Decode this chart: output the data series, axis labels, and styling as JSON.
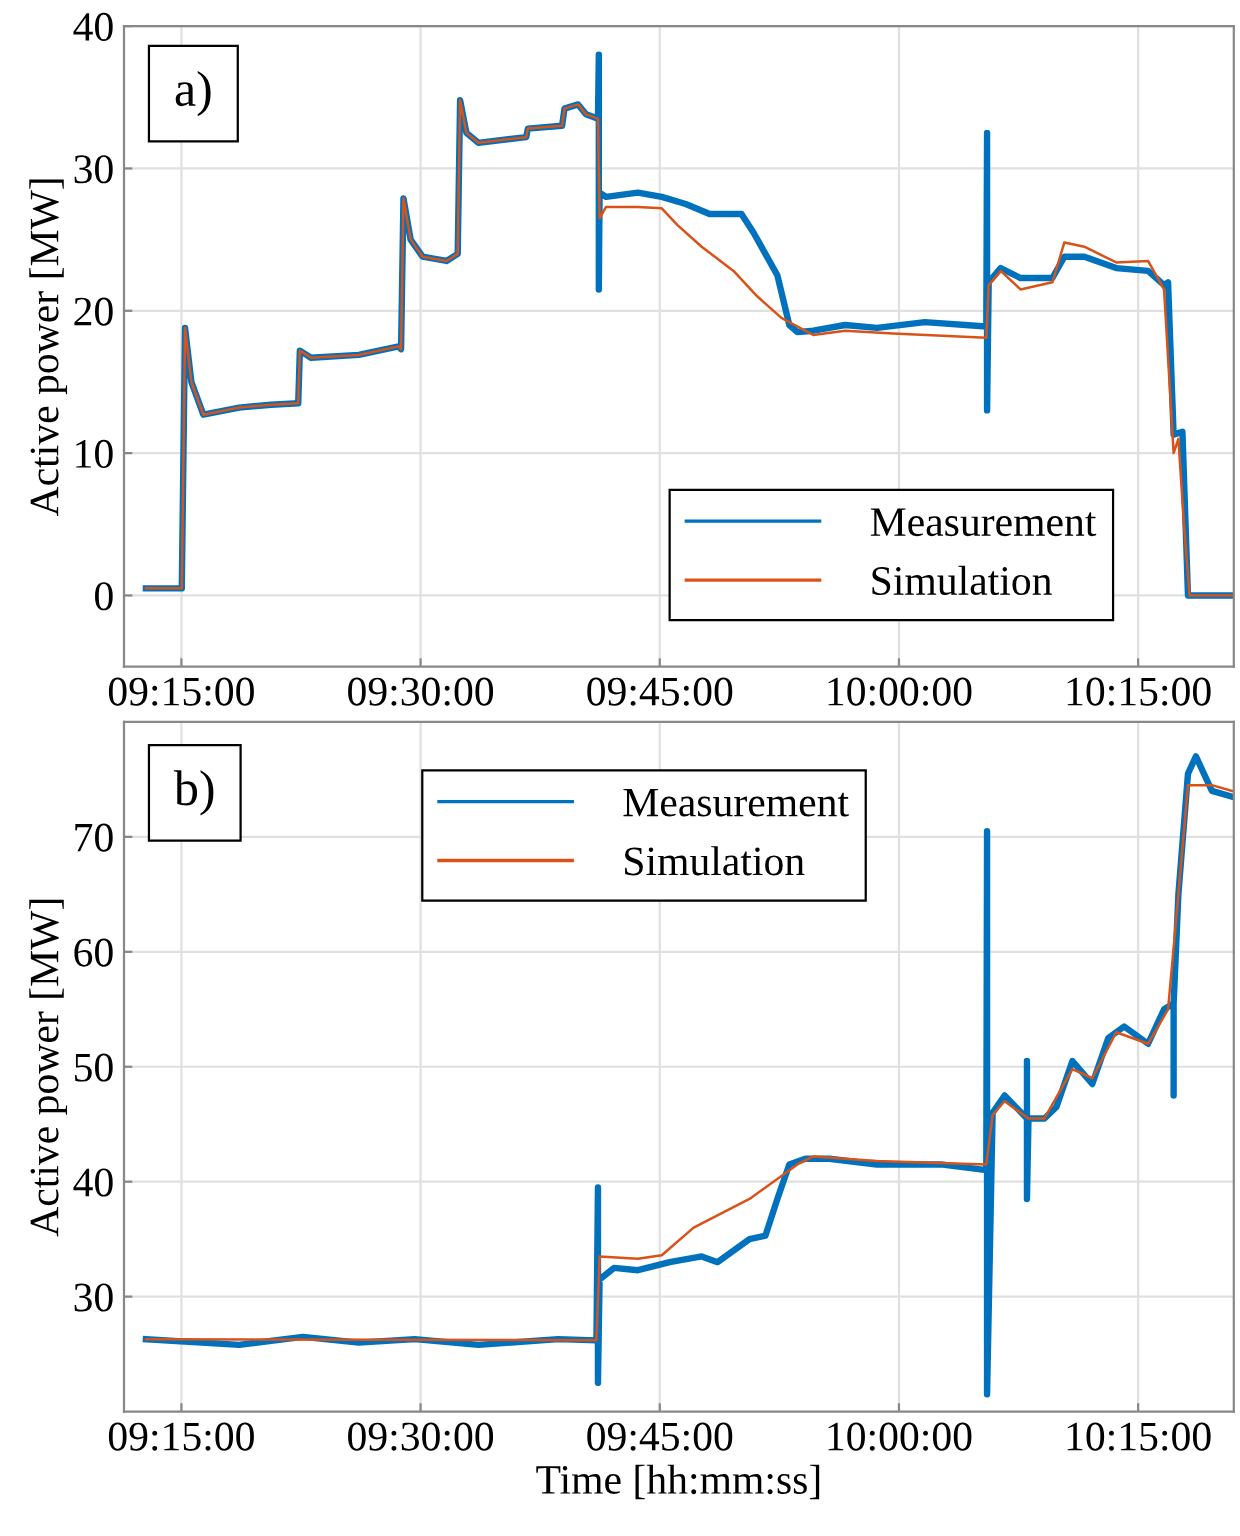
{
  "chart_data": [
    {
      "type": "line",
      "ylabel": "Active power [MW]",
      "annotations": [
        "a)"
      ],
      "legend": "bottom right",
      "grid": true,
      "line_style": "solid",
      "marker": "none",
      "xlim": [
        9.19,
        10.35
      ],
      "ylim": [
        -5,
        40
      ],
      "yticks": [
        0,
        10,
        20,
        30,
        40
      ],
      "xticks": [
        {
          "value": 9.25,
          "label": "09:15:00"
        },
        {
          "value": 9.5,
          "label": "09:30:00"
        },
        {
          "value": 9.75,
          "label": "09:45:00"
        },
        {
          "value": 10.0,
          "label": "10:00:00"
        },
        {
          "value": 10.25,
          "label": "10:15:00"
        }
      ],
      "series": [
        {
          "name": "Measurement",
          "color": "#0072bd",
          "x": [
            9.2129,
            9.2504,
            9.2538,
            9.2604,
            9.2729,
            9.3104,
            9.3438,
            9.3721,
            9.3738,
            9.3854,
            9.4354,
            9.4771,
            9.4796,
            9.4821,
            9.4896,
            9.5021,
            9.5271,
            9.5388,
            9.5413,
            9.5479,
            9.5604,
            9.6104,
            9.6121,
            9.6479,
            9.6504,
            9.6646,
            9.6729,
            9.6854,
            9.6863,
            9.6863,
            9.6871,
            9.6938,
            9.7271,
            9.7521,
            9.7771,
            9.8021,
            9.8354,
            9.8479,
            9.8604,
            9.8729,
            9.8854,
            9.8938,
            9.9104,
            9.9438,
            9.9771,
            10.0271,
            10.0913,
            10.0921,
            10.0921,
            10.0938,
            10.1063,
            10.1271,
            10.1604,
            10.1729,
            10.1938,
            10.2271,
            10.2604,
            10.2771,
            10.2813,
            10.2871,
            10.2963,
            10.3021,
            10.3063,
            10.3479
          ],
          "values": [
            0.5,
            0.5,
            18.8,
            15,
            12.7,
            13.2,
            13.4,
            13.5,
            17.2,
            16.7,
            16.9,
            17.5,
            17.3,
            27.9,
            25,
            23.8,
            23.5,
            24,
            34.8,
            32.5,
            31.8,
            32.2,
            32.8,
            33,
            34.2,
            34.5,
            33.8,
            33.5,
            38,
            21.5,
            28.3,
            28,
            28.3,
            28,
            27.5,
            26.8,
            26.8,
            25.5,
            24,
            22.5,
            19,
            18.5,
            18.6,
            19,
            18.8,
            19.2,
            18.9,
            32.5,
            13,
            22,
            23,
            22.3,
            22.3,
            23.8,
            23.8,
            23,
            22.8,
            21.8,
            22,
            11.3,
            11.5,
            0,
            0,
            0
          ]
        },
        {
          "name": "Simulation",
          "color": "#d95319",
          "x": [
            9.2129,
            9.2504,
            9.2538,
            9.2604,
            9.2729,
            9.3104,
            9.3438,
            9.3721,
            9.3738,
            9.3854,
            9.4354,
            9.4771,
            9.4796,
            9.4821,
            9.4896,
            9.5021,
            9.5271,
            9.5388,
            9.5413,
            9.5479,
            9.5604,
            9.6104,
            9.6121,
            9.6479,
            9.6504,
            9.6646,
            9.6729,
            9.6854,
            9.6871,
            9.6938,
            9.7271,
            9.7521,
            9.7688,
            9.7938,
            9.8271,
            9.8521,
            9.8771,
            9.9104,
            9.9438,
            9.9938,
            10.0913,
            10.0938,
            10.1063,
            10.1271,
            10.1604,
            10.1729,
            10.1938,
            10.2271,
            10.2604,
            10.2771,
            10.2871,
            10.2921,
            10.2979,
            10.3038,
            10.3479
          ],
          "values": [
            0.5,
            0.5,
            18.8,
            15,
            12.7,
            13.2,
            13.4,
            13.5,
            17.2,
            16.7,
            16.9,
            17.5,
            17.3,
            27.9,
            25,
            23.8,
            23.5,
            24,
            34.8,
            32.5,
            31.8,
            32.2,
            32.8,
            33,
            34.2,
            34.5,
            33.8,
            33.5,
            26.5,
            27.3,
            27.3,
            27.2,
            26,
            24.5,
            22.8,
            21,
            19.5,
            18.3,
            18.6,
            18.4,
            18.1,
            21.8,
            22.8,
            21.5,
            22,
            24.8,
            24.5,
            23.4,
            23.5,
            21.5,
            10,
            11,
            5,
            0,
            0
          ]
        }
      ]
    },
    {
      "type": "line",
      "xlabel": "Time [hh:mm:ss]",
      "ylabel": "Active power [MW]",
      "annotations": [
        "b)"
      ],
      "legend": "top",
      "grid": true,
      "line_style": "solid",
      "marker": "none",
      "xlim": [
        9.19,
        10.35
      ],
      "ylim": [
        20,
        80
      ],
      "yticks": [
        30,
        40,
        50,
        60,
        70
      ],
      "xticks": [
        {
          "value": 9.25,
          "label": "09:15:00"
        },
        {
          "value": 9.5,
          "label": "09:30:00"
        },
        {
          "value": 9.75,
          "label": "09:45:00"
        },
        {
          "value": 10.0,
          "label": "10:00:00"
        },
        {
          "value": 10.25,
          "label": "10:15:00"
        }
      ],
      "series": [
        {
          "name": "Measurement",
          "color": "#0072bd",
          "x": [
            9.2129,
            9.3104,
            9.3771,
            9.4354,
            9.4938,
            9.5604,
            9.6438,
            9.6838,
            9.6854,
            9.6854,
            9.6871,
            9.7021,
            9.7271,
            9.7604,
            9.7938,
            9.8104,
            9.8438,
            9.8604,
            9.8729,
            9.8854,
            9.9021,
            9.9271,
            9.9771,
            10.0438,
            10.0913,
            10.0921,
            10.0921,
            10.0979,
            10.1104,
            10.1338,
            10.1338,
            10.1338,
            10.1354,
            10.1521,
            10.1646,
            10.1813,
            10.2021,
            10.2188,
            10.2354,
            10.2604,
            10.2771,
            10.2871,
            10.2871,
            10.2871,
            10.2921,
            10.3021,
            10.3104,
            10.3271,
            10.3479
          ],
          "values": [
            26.3,
            25.8,
            26.5,
            26,
            26.3,
            25.8,
            26.3,
            26.2,
            39.5,
            22.5,
            31.5,
            32.5,
            32.3,
            33,
            33.5,
            33,
            35,
            35.3,
            38.5,
            41.5,
            42,
            42,
            41.5,
            41.5,
            41,
            70.5,
            21.5,
            46,
            47.5,
            45.5,
            50.5,
            38.5,
            45.5,
            45.5,
            46.5,
            50.5,
            48.5,
            52.5,
            53.5,
            52,
            55,
            55.5,
            47.5,
            55.5,
            65,
            75.5,
            77,
            74,
            73.5
          ]
        },
        {
          "name": "Simulation",
          "color": "#d95319",
          "x": [
            9.2129,
            9.6838,
            9.6871,
            9.7271,
            9.7521,
            9.7854,
            9.8438,
            9.8938,
            9.9104,
            9.9771,
            10.0913,
            10.0979,
            10.1104,
            10.1354,
            10.1521,
            10.1813,
            10.2021,
            10.2271,
            10.2604,
            10.2813,
            10.2921,
            10.3021,
            10.3271,
            10.3479
          ],
          "values": [
            26.3,
            26.2,
            33.5,
            33.3,
            33.6,
            36,
            38.5,
            41.5,
            42.2,
            41.8,
            41.5,
            45.8,
            47,
            45.5,
            45.5,
            49.8,
            49,
            53,
            52,
            55,
            65,
            74.5,
            74.5,
            74
          ]
        }
      ]
    }
  ]
}
